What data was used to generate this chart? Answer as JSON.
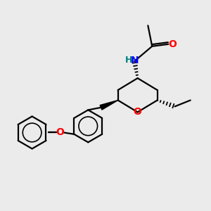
{
  "bg_color": "#ebebeb",
  "bond_color": "#000000",
  "o_color": "#ff0000",
  "n_color": "#0000ff",
  "h_color": "#008080",
  "line_width": 1.6,
  "figsize": [
    3.0,
    3.0
  ],
  "dpi": 100,
  "xlim": [
    0,
    10
  ],
  "ylim": [
    0,
    10
  ]
}
